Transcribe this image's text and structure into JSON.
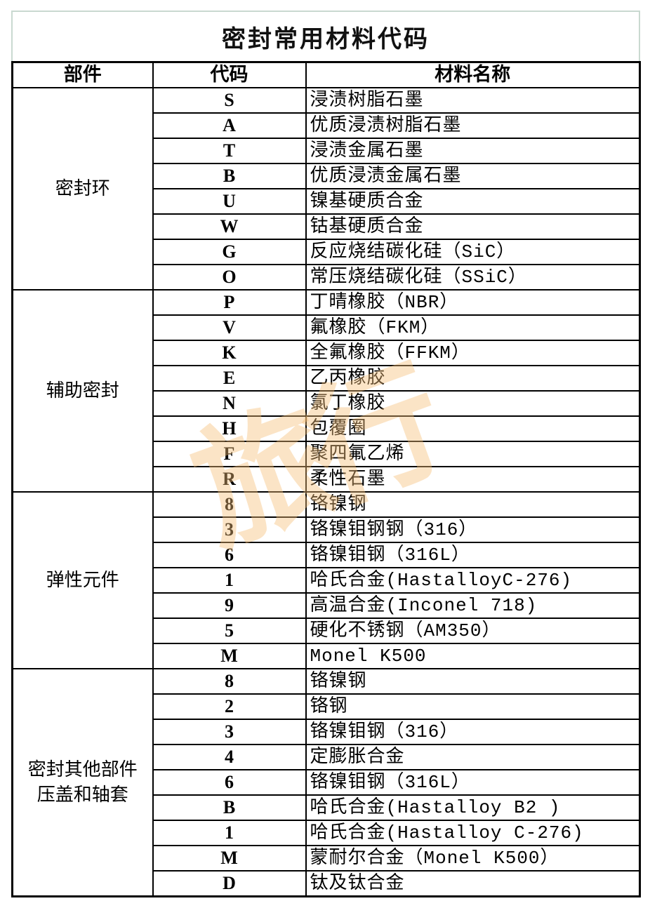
{
  "title": "密封常用材料代码",
  "headers": [
    "部件",
    "代码",
    "材料名称"
  ],
  "watermark": "旅行",
  "groups": [
    {
      "label": [
        "密封环"
      ],
      "rows": [
        [
          "S",
          "浸渍树脂石墨"
        ],
        [
          "A",
          "优质浸渍树脂石墨"
        ],
        [
          "T",
          "浸渍金属石墨"
        ],
        [
          "B",
          "优质浸渍金属石墨"
        ],
        [
          "U",
          "镍基硬质合金"
        ],
        [
          "W",
          "钴基硬质合金"
        ],
        [
          "G",
          "反应烧结碳化硅（SiC）"
        ],
        [
          "O",
          "常压烧结碳化硅（SSiC）"
        ]
      ]
    },
    {
      "label": [
        "辅助密封"
      ],
      "rows": [
        [
          "P",
          "丁晴橡胶（NBR）"
        ],
        [
          "V",
          "氟橡胶（FKM）"
        ],
        [
          "K",
          "全氟橡胶（FFKM）"
        ],
        [
          "E",
          "乙丙橡胶"
        ],
        [
          "N",
          "氯丁橡胶"
        ],
        [
          "H",
          "包覆圈"
        ],
        [
          "F",
          "聚四氟乙烯"
        ],
        [
          "R",
          "柔性石墨"
        ]
      ]
    },
    {
      "label": [
        "弹性元件"
      ],
      "rows": [
        [
          "8",
          "铬镍钢"
        ],
        [
          "3",
          "铬镍钼钢钢（316）"
        ],
        [
          "6",
          "铬镍钼钢（316L）"
        ],
        [
          "1",
          "哈氏合金(HastalloyC-276)"
        ],
        [
          "9",
          "高温合金(Inconel 718)"
        ],
        [
          "5",
          "硬化不锈钢（AM350）"
        ],
        [
          "M",
          "Monel K500"
        ]
      ]
    },
    {
      "label": [
        "密封其他部件",
        "压盖和轴套"
      ],
      "rows": [
        [
          "8",
          "铬镍钢"
        ],
        [
          "2",
          "铬钢"
        ],
        [
          "3",
          "铬镍钼钢（316）"
        ],
        [
          "4",
          "定膨胀合金"
        ],
        [
          "6",
          "铬镍钼钢（316L）"
        ],
        [
          "B",
          "哈氏合金(Hastalloy B2 )"
        ],
        [
          "1",
          "哈氏合金(Hastalloy C-276)"
        ],
        [
          "M",
          "蒙耐尔合金（Monel K500）"
        ],
        [
          "D",
          "钛及钛合金"
        ]
      ]
    }
  ]
}
